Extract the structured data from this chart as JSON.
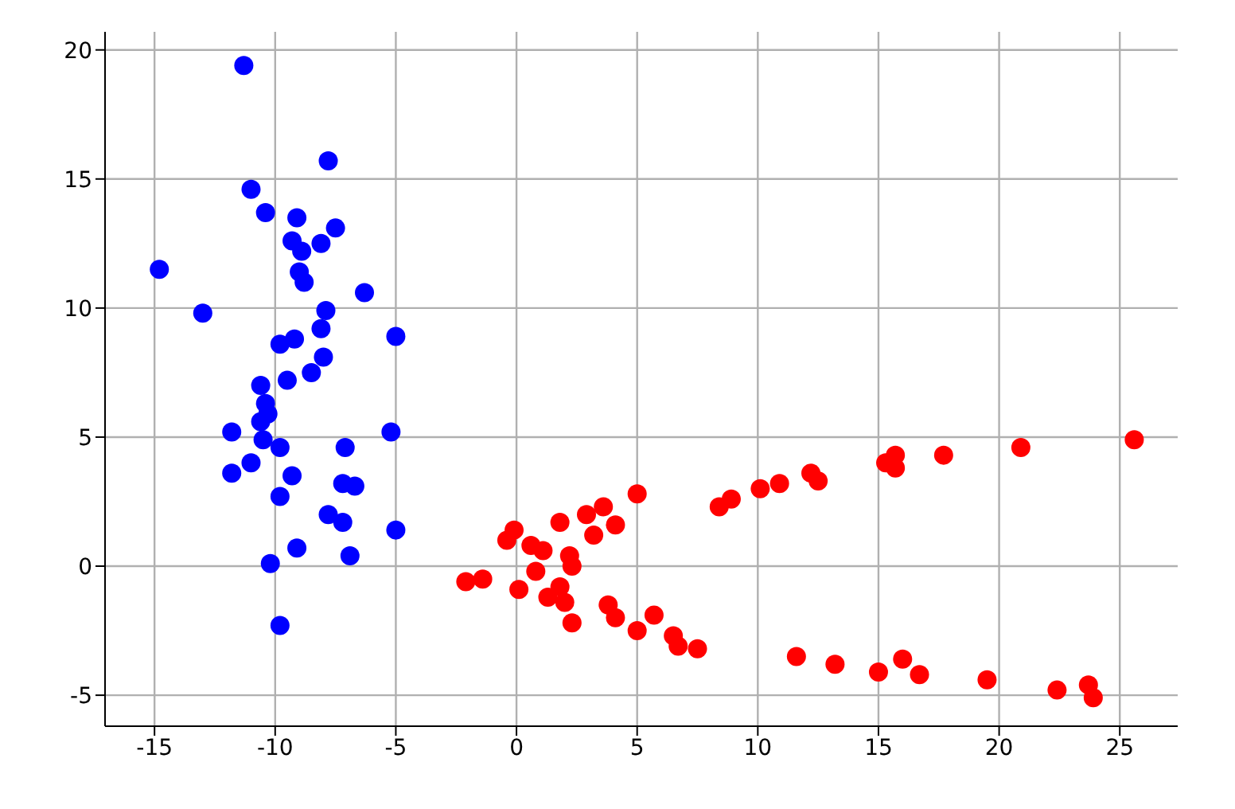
{
  "chart_data": {
    "type": "scatter",
    "xlim": [
      -17.05,
      27.4
    ],
    "ylim": [
      -6.2,
      20.7
    ],
    "xticks": [
      -15,
      -10,
      -5,
      0,
      5,
      10,
      15,
      20,
      25
    ],
    "yticks": [
      -5,
      0,
      5,
      10,
      15,
      20
    ],
    "grid": true,
    "legend": false,
    "marker": "circle",
    "series": [
      {
        "color": "#0000ff",
        "x": [
          -11.3,
          -7.8,
          -11.0,
          -10.4,
          -9.1,
          -7.5,
          -9.3,
          -8.1,
          -8.9,
          -9.0,
          -8.8,
          -14.8,
          -6.3,
          -13.0,
          -7.9,
          -5.0,
          -8.1,
          -9.8,
          -9.2,
          -8.0,
          -9.5,
          -10.6,
          -8.5,
          -10.4,
          -10.3,
          -10.6,
          -11.8,
          -10.5,
          -5.2,
          -9.8,
          -7.1,
          -11.0,
          -11.8,
          -9.3,
          -9.8,
          -7.2,
          -6.9,
          -6.7,
          -7.8,
          -7.2,
          -5.0,
          -9.1,
          -6.9,
          -10.2,
          -9.8
        ],
        "values": [
          19.4,
          15.7,
          14.6,
          13.7,
          13.5,
          13.1,
          12.6,
          12.5,
          12.2,
          11.4,
          11.0,
          11.5,
          10.6,
          9.8,
          9.9,
          8.9,
          9.2,
          8.6,
          8.8,
          8.1,
          7.2,
          7.0,
          7.5,
          6.3,
          5.9,
          5.6,
          5.2,
          4.9,
          5.2,
          4.6,
          4.6,
          4.0,
          3.6,
          3.5,
          2.7,
          3.2,
          null,
          3.1,
          2.0,
          1.7,
          1.4,
          0.7,
          0.4,
          0.1,
          -2.3
        ]
      },
      {
        "color": "#ff0000",
        "x": [
          -2.1,
          -1.4,
          -0.4,
          -0.1,
          0.6,
          1.1,
          0.8,
          0.1,
          1.3,
          1.8,
          2.0,
          2.3,
          1.8,
          2.2,
          2.3,
          2.9,
          3.2,
          3.6,
          4.1,
          5.0,
          3.8,
          4.1,
          5.0,
          5.7,
          6.5,
          6.7,
          7.5,
          8.4,
          8.9,
          10.1,
          10.9,
          12.2,
          12.5,
          15.3,
          15.7,
          15.7,
          17.7,
          20.9,
          25.6,
          11.6,
          13.2,
          15.0,
          16.0,
          16.7,
          19.5,
          22.4,
          23.7,
          23.9
        ],
        "values": [
          -0.6,
          -0.5,
          1.0,
          1.4,
          0.8,
          0.6,
          -0.2,
          -0.9,
          -1.2,
          -0.8,
          -1.4,
          -2.2,
          1.7,
          0.4,
          0.0,
          2.0,
          1.2,
          2.3,
          1.6,
          2.8,
          -1.5,
          -2.0,
          -2.5,
          -1.9,
          -2.7,
          -3.1,
          -3.2,
          2.3,
          2.6,
          3.0,
          3.2,
          3.6,
          3.3,
          4.0,
          4.3,
          3.8,
          4.3,
          4.6,
          4.9,
          -3.5,
          -3.8,
          -4.1,
          -3.6,
          -4.2,
          -4.4,
          -4.8,
          -4.6,
          -5.1
        ]
      }
    ]
  }
}
